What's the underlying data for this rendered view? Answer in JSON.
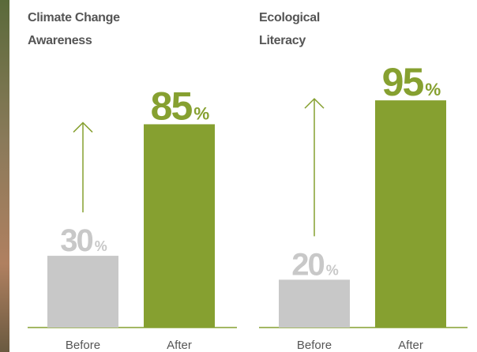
{
  "chart_data": [
    {
      "type": "bar",
      "title": "Climate Change Awareness",
      "categories": [
        "Before",
        "After"
      ],
      "values": [
        30,
        85
      ],
      "value_labels": [
        "30%",
        "85%"
      ],
      "colors": [
        "#c8c8c8",
        "#86a030"
      ]
    },
    {
      "type": "bar",
      "title": "Ecological Literacy",
      "categories": [
        "Before",
        "After"
      ],
      "values": [
        20,
        95
      ],
      "value_labels": [
        "20%",
        "95%"
      ],
      "colors": [
        "#c8c8c8",
        "#86a030"
      ]
    }
  ]
}
